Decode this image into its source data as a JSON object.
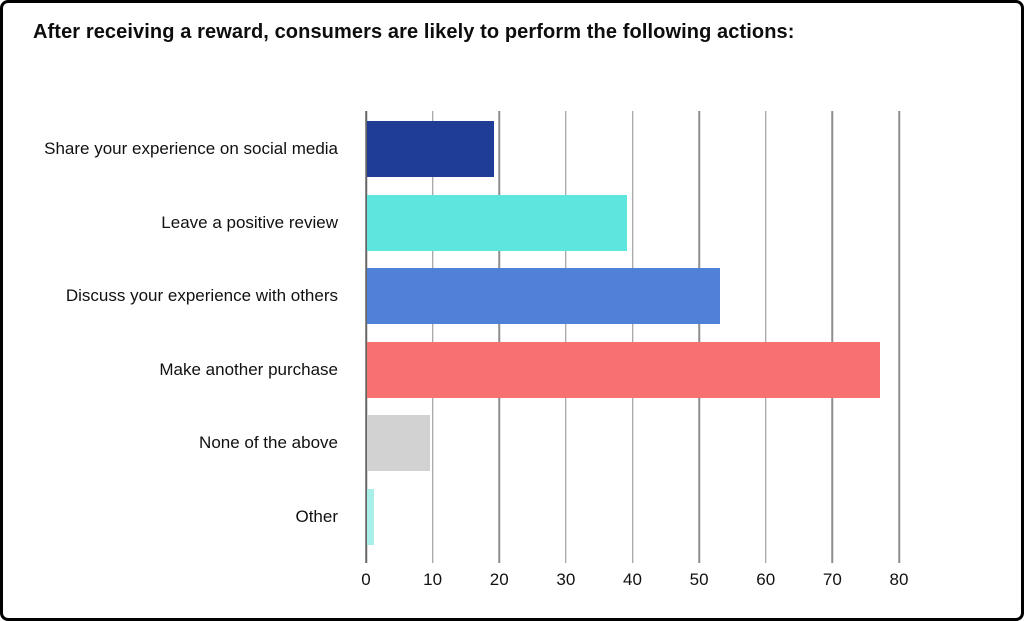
{
  "frame": {
    "background_color": "#ffffff",
    "border_color": "#000000"
  },
  "chart_data": {
    "type": "bar",
    "orientation": "horizontal",
    "title": "After receiving a reward, consumers are likely to perform the following actions:",
    "categories": [
      "Share your experience on social media",
      "Leave a positive review",
      "Discuss your experience with others",
      "Make another purchase",
      "None of the above",
      "Other"
    ],
    "values": [
      19,
      39,
      53,
      77,
      9.5,
      1
    ],
    "bar_colors": [
      "#203d96",
      "#5ce6dd",
      "#5081d8",
      "#f87070",
      "#d2d2d2",
      "#a8efe9"
    ],
    "xlabel": "",
    "ylabel": "",
    "xlim": [
      0,
      80
    ],
    "x_ticks": [
      0,
      10,
      20,
      30,
      40,
      50,
      60,
      70,
      80
    ],
    "x_tick_labels": [
      "0",
      "10",
      "20",
      "30",
      "40",
      "50",
      "60",
      "70",
      "80"
    ],
    "grid": "vertical",
    "gridline_color": "#8e8e8e",
    "axis_color": "#656565",
    "text_color": "#111111",
    "legend": "none"
  }
}
